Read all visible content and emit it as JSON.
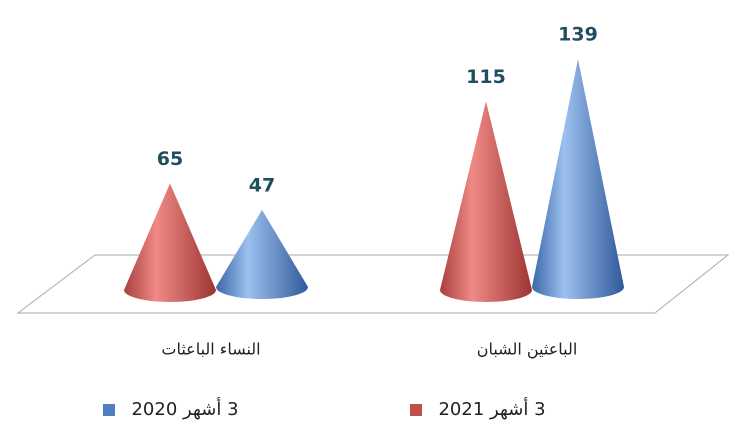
{
  "chart_data": {
    "type": "cone",
    "categories": [
      "الباعثين الشبان",
      "النساء الباعثات"
    ],
    "series": [
      {
        "name": "3 أشهر 2021",
        "color": "#c0504d",
        "values": [
          115,
          65
        ]
      },
      {
        "name": "3 أشهر 2020",
        "color": "#4f81bd",
        "values": [
          139,
          47
        ]
      }
    ]
  }
}
